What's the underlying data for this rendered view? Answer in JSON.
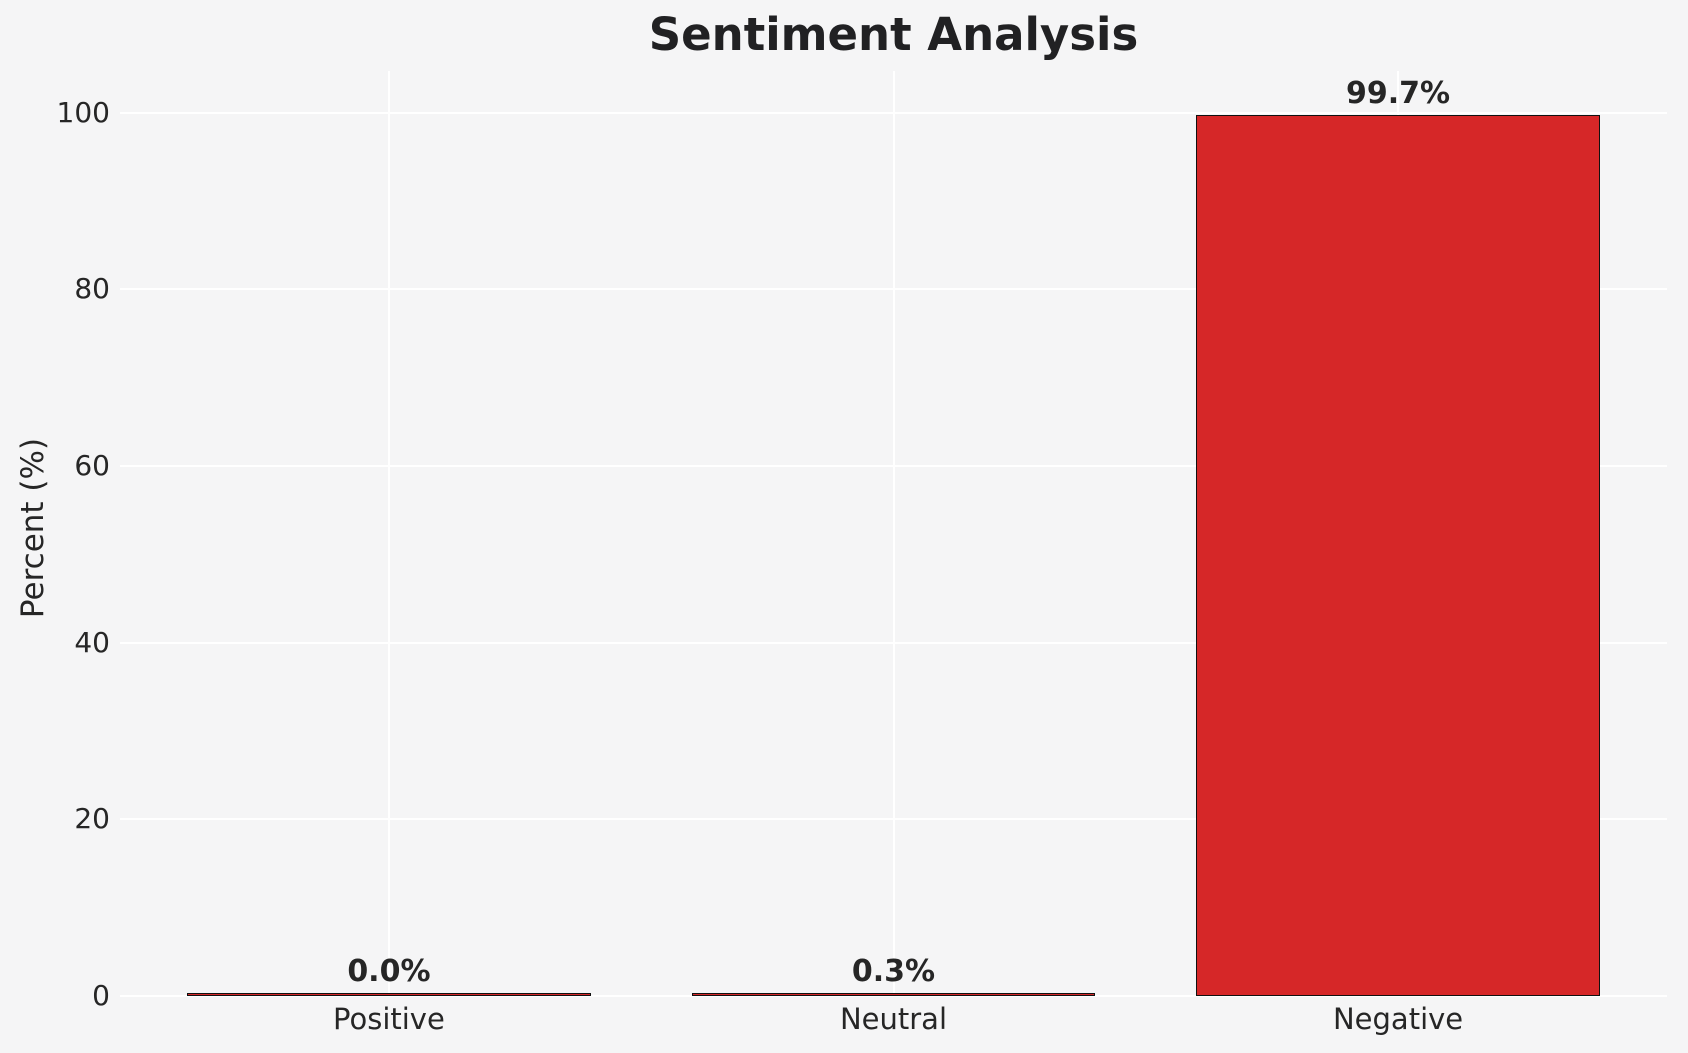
{
  "chart_data": {
    "type": "bar",
    "title": "Sentiment Analysis",
    "xlabel": "",
    "ylabel": "Percent (%)",
    "categories": [
      "Positive",
      "Neutral",
      "Negative"
    ],
    "values": [
      0.0,
      0.3,
      99.7
    ],
    "value_labels": [
      "0.0%",
      "0.3%",
      "99.7%"
    ],
    "yticks": [
      "0",
      "20",
      "40",
      "60",
      "80",
      "100"
    ],
    "ylim": [
      0,
      104.7
    ],
    "grid": true,
    "legend": false,
    "colors": {
      "bar_fill": "#d62728",
      "bar_edge": "#111111",
      "background": "#f5f5f6",
      "gridline": "#ffffff",
      "title_text": "#212123",
      "tick_text": "#262626"
    }
  }
}
